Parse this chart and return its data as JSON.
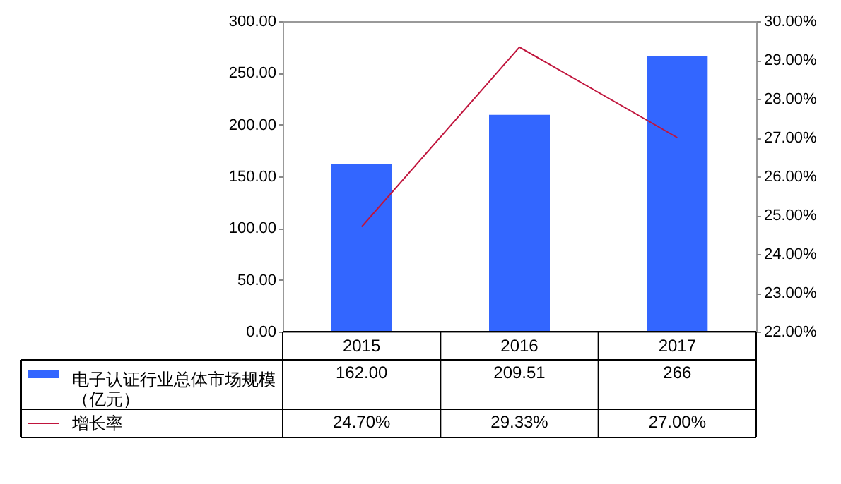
{
  "chart_data": {
    "type": "bar",
    "categories": [
      "2015",
      "2016",
      "2017"
    ],
    "series": [
      {
        "name": "电子认证行业总体市场规模（亿元）",
        "color": "#3366ff",
        "values": [
          162.0,
          209.51,
          266
        ],
        "value_labels": [
          "162.00",
          "209.51",
          "266"
        ]
      },
      {
        "name": "增长率",
        "type": "line",
        "axis": "y2",
        "color": "#c0143c",
        "values": [
          24.7,
          29.33,
          27.0
        ],
        "value_labels": [
          "24.70%",
          "29.33%",
          "27.00%"
        ]
      }
    ],
    "ylim": [
      0,
      300
    ],
    "yticks": [
      {
        "value": 0,
        "label": "0.00"
      },
      {
        "value": 50,
        "label": "50.00"
      },
      {
        "value": 100,
        "label": "100.00"
      },
      {
        "value": 150,
        "label": "150.00"
      },
      {
        "value": 200,
        "label": "200.00"
      },
      {
        "value": 250,
        "label": "250.00"
      },
      {
        "value": 300,
        "label": "300.00"
      }
    ],
    "y2lim": [
      22,
      30
    ],
    "y2ticks": [
      {
        "value": 22,
        "label": "22.00%"
      },
      {
        "value": 23,
        "label": "23.00%"
      },
      {
        "value": 24,
        "label": "24.00%"
      },
      {
        "value": 25,
        "label": "25.00%"
      },
      {
        "value": 26,
        "label": "26.00%"
      },
      {
        "value": 27,
        "label": "27.00%"
      },
      {
        "value": 28,
        "label": "28.00%"
      },
      {
        "value": 29,
        "label": "29.00%"
      },
      {
        "value": 30,
        "label": "30.00%"
      }
    ],
    "grid": false,
    "legend": "bottom",
    "marker": "none",
    "line_style": "solid"
  }
}
